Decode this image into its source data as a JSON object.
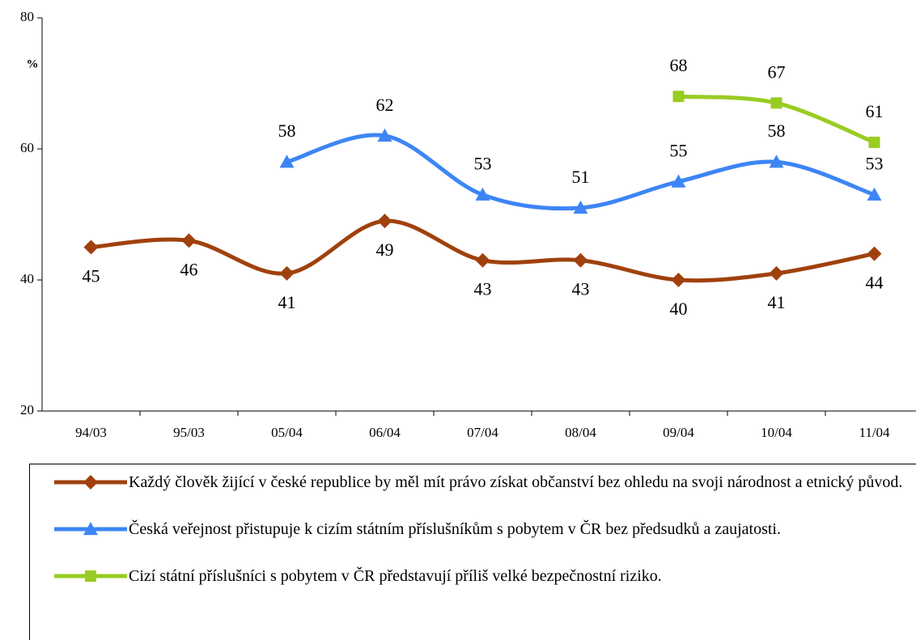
{
  "chart_data": {
    "type": "line",
    "y_label": "%",
    "categories": [
      "94/03",
      "95/03",
      "05/04",
      "06/04",
      "07/04",
      "08/04",
      "09/04",
      "10/04",
      "11/04"
    ],
    "series": [
      {
        "name": "Každý člověk žijící v české republice by měl mít právo získat občanství bez ohledu na svoji národnost a etnický původ.",
        "color": "#a0410d",
        "marker": "diamond",
        "label_position": "below",
        "values": [
          45,
          46,
          41,
          49,
          43,
          43,
          40,
          41,
          44
        ]
      },
      {
        "name": "Česká veřejnost přistupuje k cizím státním příslušníkům s pobytem v ČR bez předsudků a zaujatosti.",
        "color": "#3d85f5",
        "marker": "triangle",
        "label_position": "above",
        "values": [
          null,
          null,
          58,
          62,
          53,
          51,
          55,
          58,
          53
        ]
      },
      {
        "name": "Cizí státní příslušníci s pobytem v ČR představují příliš velké bezpečnostní riziko.",
        "color": "#99cc22",
        "marker": "square",
        "label_position": "above",
        "values": [
          null,
          null,
          null,
          null,
          null,
          null,
          68,
          67,
          61
        ]
      }
    ],
    "ylim": [
      20,
      80
    ],
    "yticks": [
      20,
      40,
      60,
      80
    ],
    "grid": false,
    "smooth": true
  }
}
